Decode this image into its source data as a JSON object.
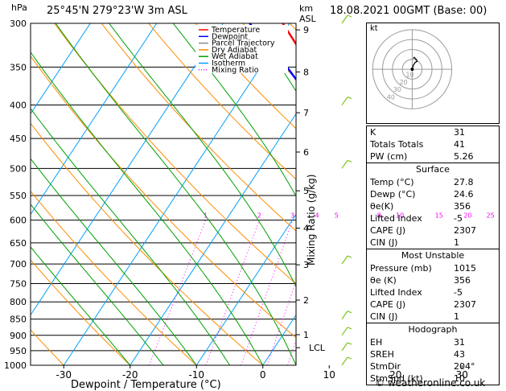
{
  "header": {
    "location": "25°45'N  279°23'W  3m  ASL",
    "datetime": "18.08.2021  00GMT  (Base: 00)",
    "p_unit": "hPa",
    "km_unit": "km",
    "asl": "ASL",
    "mixing_label": "Mixing Ratio (g/kg)",
    "hodo_unit": "kt",
    "credit": "© weatheronline.co.uk"
  },
  "legend": [
    {
      "label": "Temperature",
      "color": "#ff0000",
      "style": "solid"
    },
    {
      "label": "Dewpoint",
      "color": "#0000ff",
      "style": "solid"
    },
    {
      "label": "Parcel Trajectory",
      "color": "#8c8c8c",
      "style": "solid"
    },
    {
      "label": "Dry Adiabat",
      "color": "#ff8c00",
      "style": "solid"
    },
    {
      "label": "Wet Adiabat",
      "color": "#00a000",
      "style": "solid"
    },
    {
      "label": "Isotherm",
      "color": "#00a0ff",
      "style": "solid"
    },
    {
      "label": "Mixing Ratio",
      "color": "#ff00ff",
      "style": "dotted"
    }
  ],
  "chart_data": {
    "type": "line",
    "xlabel": "Dewpoint / Temperature (°C)",
    "ylabel": "hPa",
    "xlim": [
      -35,
      40
    ],
    "ylim": [
      1000,
      300
    ],
    "y_scale": "log",
    "pressure_ticks": [
      300,
      350,
      400,
      450,
      500,
      550,
      600,
      650,
      700,
      750,
      800,
      850,
      900,
      950,
      1000
    ],
    "temp_ticks": [
      -30,
      -20,
      -10,
      0,
      10,
      20,
      30,
      40
    ],
    "km_ticks": [
      {
        "label": "1",
        "p": 898
      },
      {
        "label": "2",
        "p": 795
      },
      {
        "label": "3",
        "p": 702
      },
      {
        "label": "4",
        "p": 617
      },
      {
        "label": "5",
        "p": 541
      },
      {
        "label": "6",
        "p": 472
      },
      {
        "label": "7",
        "p": 411
      },
      {
        "label": "8",
        "p": 356
      },
      {
        "label": "9",
        "p": 307
      }
    ],
    "lcl": {
      "label": "LCL",
      "p": 940
    },
    "mixing_ratio_labels": [
      "1",
      "2",
      "3",
      "4",
      "5",
      "8",
      "10",
      "15",
      "20",
      "25"
    ],
    "mixing_ratio_values": [
      1,
      2,
      3,
      4,
      5,
      8,
      10,
      15,
      20,
      25
    ],
    "series": [
      {
        "name": "Temperature",
        "points": [
          [
            1000,
            27.8
          ],
          [
            950,
            24.6
          ],
          [
            925,
            22.8
          ],
          [
            900,
            21.4
          ],
          [
            850,
            19.2
          ],
          [
            800,
            17.4
          ],
          [
            775,
            16.8
          ],
          [
            750,
            16.2
          ],
          [
            725,
            14.2
          ],
          [
            700,
            12.0
          ],
          [
            650,
            8.4
          ],
          [
            600,
            4.8
          ],
          [
            550,
            0.6
          ],
          [
            500,
            -4.0
          ],
          [
            450,
            -8.8
          ],
          [
            400,
            -14.6
          ],
          [
            350,
            -22.4
          ],
          [
            300,
            -31.0
          ]
        ]
      },
      {
        "name": "Dewpoint",
        "points": [
          [
            1000,
            24.6
          ],
          [
            950,
            21.0
          ],
          [
            925,
            18.6
          ],
          [
            900,
            16.8
          ],
          [
            850,
            14.2
          ],
          [
            825,
            10.8
          ],
          [
            815,
            12.2
          ],
          [
            805,
            8.0
          ],
          [
            800,
            3.0
          ],
          [
            790,
            10.6
          ],
          [
            770,
            9.4
          ],
          [
            760,
            12.0
          ],
          [
            750,
            10.0
          ],
          [
            740,
            12.6
          ],
          [
            725,
            11.8
          ],
          [
            700,
            8.4
          ],
          [
            650,
            4.0
          ],
          [
            600,
            0.4
          ],
          [
            550,
            -3.8
          ],
          [
            500,
            -7.6
          ],
          [
            450,
            -11.0
          ],
          [
            400,
            -18.0
          ],
          [
            350,
            -26.0
          ],
          [
            300,
            -36.0
          ]
        ]
      },
      {
        "name": "Parcel Trajectory",
        "points": [
          [
            1000,
            27.8
          ],
          [
            940,
            23.0
          ],
          [
            900,
            21.9
          ],
          [
            850,
            20.4
          ],
          [
            800,
            18.7
          ],
          [
            750,
            16.9
          ],
          [
            700,
            14.9
          ],
          [
            650,
            12.7
          ],
          [
            600,
            10.1
          ],
          [
            550,
            7.2
          ],
          [
            500,
            3.9
          ],
          [
            450,
            -0.1
          ],
          [
            400,
            -5.1
          ],
          [
            350,
            -11.5
          ],
          [
            300,
            -19.6
          ]
        ]
      }
    ],
    "wind_barbs": [
      1000,
      950,
      900,
      850,
      700,
      500,
      400,
      300
    ]
  },
  "hodograph": {
    "rings_kt": [
      10,
      20,
      30,
      40
    ],
    "labels": [
      "10",
      "20",
      "30",
      "40"
    ],
    "trace": [
      [
        0,
        0
      ],
      [
        1,
        4
      ],
      [
        3,
        7
      ],
      [
        5,
        8
      ],
      [
        4,
        10
      ],
      [
        2,
        12
      ],
      [
        1,
        11
      ]
    ]
  },
  "indices": [
    {
      "label": "K",
      "value": "31"
    },
    {
      "label": "Totals Totals",
      "value": "41"
    },
    {
      "label": "PW (cm)",
      "value": "5.26"
    }
  ],
  "surface": {
    "title": "Surface",
    "rows": [
      {
        "label": "Temp (°C)",
        "value": "27.8"
      },
      {
        "label": "Dewp (°C)",
        "value": "24.6"
      },
      {
        "label": "θe(K)",
        "value": "356"
      },
      {
        "label": "Lifted Index",
        "value": "-5"
      },
      {
        "label": "CAPE (J)",
        "value": "2307"
      },
      {
        "label": "CIN (J)",
        "value": "1"
      }
    ]
  },
  "unstable": {
    "title": "Most Unstable",
    "rows": [
      {
        "label": "Pressure (mb)",
        "value": "1015"
      },
      {
        "label": "θe (K)",
        "value": "356"
      },
      {
        "label": "Lifted Index",
        "value": "-5"
      },
      {
        "label": "CAPE (J)",
        "value": "2307"
      },
      {
        "label": "CIN (J)",
        "value": "1"
      }
    ]
  },
  "hodo_table": {
    "title": "Hodograph",
    "rows": [
      {
        "label": "EH",
        "value": "31"
      },
      {
        "label": "SREH",
        "value": "43"
      },
      {
        "label": "StmDir",
        "value": "204°"
      },
      {
        "label": "StmSpd (kt)",
        "value": "10"
      }
    ]
  }
}
